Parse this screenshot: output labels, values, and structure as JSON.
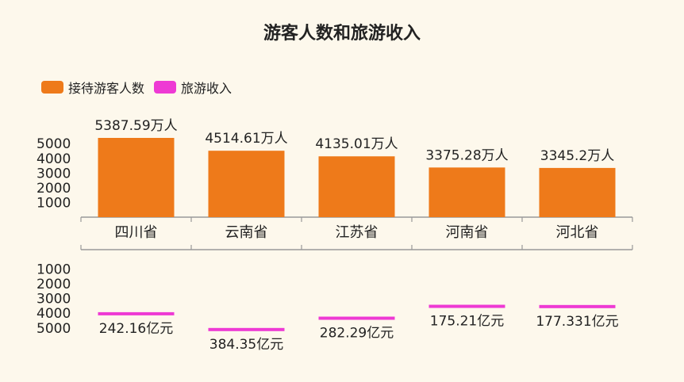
{
  "chart_data": {
    "type": "bar",
    "title": "游客人数和旅游收入",
    "categories": [
      "四川省",
      "云南省",
      "江苏省",
      "河南省",
      "河北省"
    ],
    "series": [
      {
        "name": "接待游客人数",
        "color": "#ee7a1a",
        "values": [
          5387.59,
          4514.61,
          4135.01,
          3375.28,
          3345.2
        ],
        "labels": [
          "5387.59万人",
          "4514.61万人",
          "4135.01万人",
          "3375.28万人",
          "3345.2万人"
        ]
      },
      {
        "name": "旅游收入",
        "color": "#ee3ad4",
        "values": [
          242.16,
          384.35,
          282.29,
          175.21,
          177.331
        ],
        "labels": [
          "242.16亿元",
          "384.35亿元",
          "282.29亿元",
          "175.21亿元",
          "177.331亿元"
        ]
      }
    ],
    "top_axis": {
      "ticks": [
        "1000",
        "2000",
        "3000",
        "4000",
        "5000"
      ],
      "ylim": [
        0,
        5387.59
      ]
    },
    "bottom_axis": {
      "ticks": [
        "1000",
        "2000",
        "3000",
        "4000",
        "5000"
      ],
      "ylim": [
        0,
        5387.59
      ],
      "inverted": true
    },
    "legend_position": "top-left",
    "grid": false
  }
}
